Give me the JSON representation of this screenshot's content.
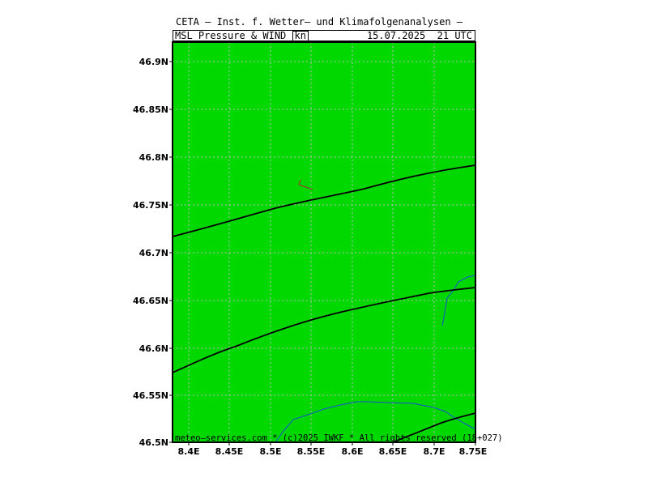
{
  "header": {
    "institute": "CETA – Inst. f. Wetter– und Klimafolgenanalysen –",
    "product": "MSL_Pressure_&_WIND_",
    "unit": "kn",
    "valid_time": "15.07.2025  21 UTC"
  },
  "map": {
    "land_color": "#00d800",
    "grid_color": "#bdbdbd",
    "isobar_color": "#000000",
    "river_color": "#1a4fd8",
    "wind_barb_color": "#8b4a2b",
    "lon_labels": [
      "8.4E",
      "8.45E",
      "8.5E",
      "8.55E",
      "8.6E",
      "8.65E",
      "8.7E",
      "8.75E"
    ],
    "lat_labels": [
      "46.9N",
      "46.85N",
      "46.8N",
      "46.75N",
      "46.7N",
      "46.65N",
      "46.6N",
      "46.55N",
      "46.5N"
    ]
  },
  "footer": {
    "credit": "meteo–services.com * (c)2025 IWKF * All rights reserved (18+027)"
  }
}
